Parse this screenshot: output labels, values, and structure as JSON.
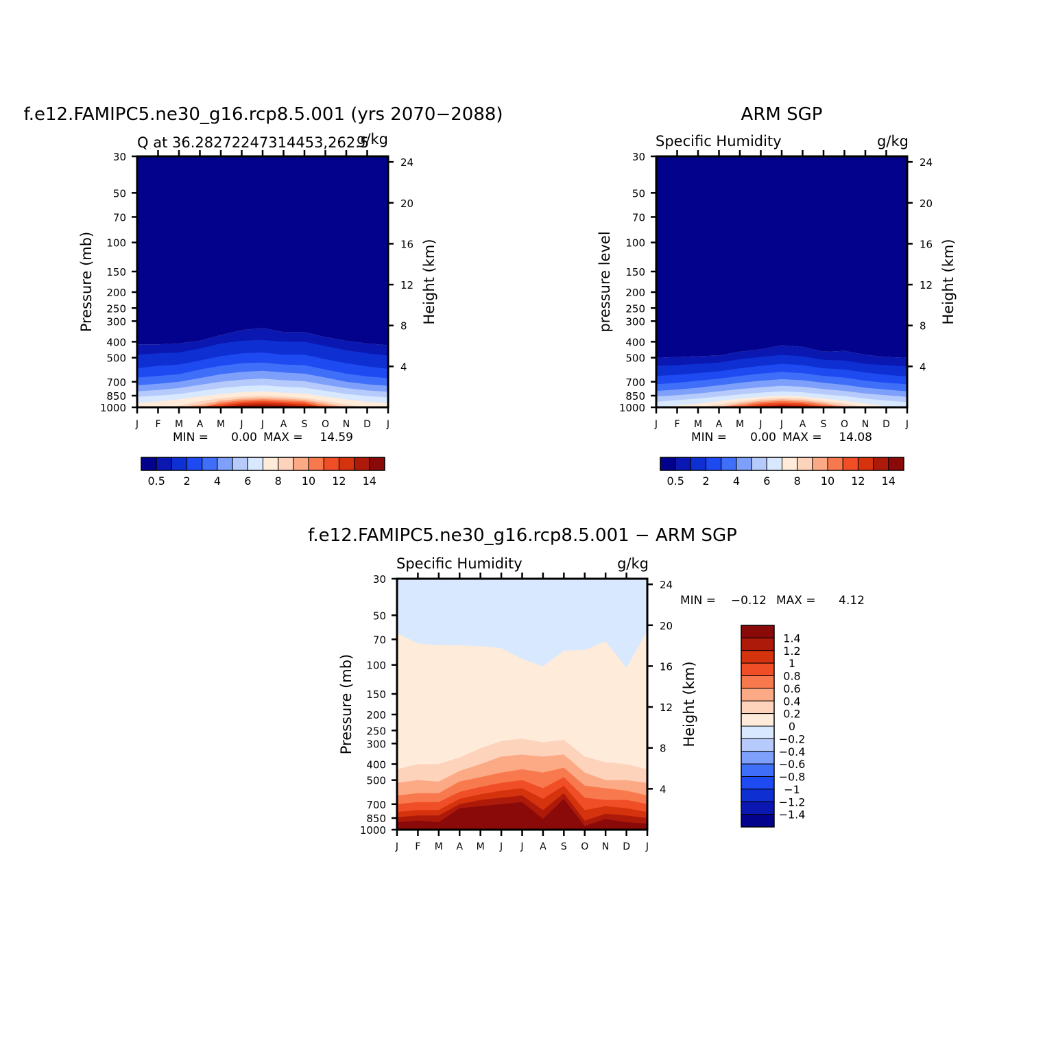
{
  "colors": {
    "q_scale": [
      "#03028c",
      "#0a17b0",
      "#0e2fd2",
      "#1e4af1",
      "#3f6ef9",
      "#7ea0fa",
      "#b6cbfb",
      "#d8e8fe",
      "#feebd9",
      "#fdd3bb",
      "#fcaa85",
      "#f8794e",
      "#f04e26",
      "#d5330d",
      "#ae1a0a",
      "#8a0a09"
    ],
    "diff_scale": [
      "#03028c",
      "#0a17b0",
      "#0e2fd2",
      "#1e4af1",
      "#3f6ef9",
      "#7ea0fa",
      "#b6cbfb",
      "#d8e8fe",
      "#feebd9",
      "#fdd3bb",
      "#fcaa85",
      "#f8794e",
      "#f04e26",
      "#d5330d",
      "#ae1a0a",
      "#8a0a09"
    ]
  },
  "chart_data": [
    {
      "type": "heatmap",
      "title": "f.e12.FAMIPC5.ne30_g16.rcp8.5.001 (yrs 2070−2088)",
      "subtitle_left": "Q at 36.28272247314453,262.5",
      "subtitle_right": "g/kg",
      "ylabel": "Pressure (mb)",
      "ylabel_right": "Height (km)",
      "months": [
        "J",
        "F",
        "M",
        "A",
        "M",
        "J",
        "J",
        "A",
        "S",
        "O",
        "N",
        "D",
        "J"
      ],
      "pressure_ticks": [
        "30",
        "50",
        "70",
        "100",
        "150",
        "200",
        "250",
        "300",
        "400",
        "500",
        "700",
        "850",
        "1000"
      ],
      "height_ticks": [
        "24",
        "20",
        "16",
        "12",
        "8",
        "4"
      ],
      "ylim": [
        30,
        1000
      ],
      "stats": {
        "min_label": "MIN =",
        "min": "0.00",
        "max_label": "MAX =",
        "max": "14.59"
      },
      "colorbar_ticks": [
        "0.5",
        "2",
        "4",
        "6",
        "8",
        "10",
        "12",
        "14"
      ],
      "series": [
        {
          "name": "0.5",
          "values": [
            415,
            415,
            410,
            395,
            365,
            340,
            330,
            350,
            350,
            375,
            395,
            410,
            420
          ]
        },
        {
          "name": "1",
          "values": [
            480,
            470,
            465,
            440,
            410,
            395,
            390,
            400,
            400,
            425,
            450,
            470,
            485
          ]
        },
        {
          "name": "2",
          "values": [
            580,
            560,
            550,
            520,
            490,
            470,
            465,
            480,
            480,
            510,
            540,
            565,
            585
          ]
        },
        {
          "name": "3",
          "values": [
            660,
            645,
            630,
            590,
            560,
            540,
            535,
            550,
            555,
            590,
            625,
            650,
            665
          ]
        },
        {
          "name": "4",
          "values": [
            735,
            720,
            700,
            665,
            630,
            610,
            600,
            615,
            625,
            660,
            700,
            725,
            740
          ]
        },
        {
          "name": "5",
          "values": [
            800,
            785,
            765,
            730,
            700,
            680,
            670,
            685,
            695,
            730,
            765,
            790,
            805
          ]
        },
        {
          "name": "6",
          "values": [
            865,
            850,
            830,
            795,
            765,
            745,
            735,
            750,
            760,
            795,
            830,
            855,
            870
          ]
        },
        {
          "name": "7",
          "values": [
            940,
            920,
            895,
            860,
            830,
            810,
            800,
            815,
            825,
            860,
            895,
            925,
            945
          ]
        },
        {
          "name": "8",
          "values": [
            1000,
            1000,
            980,
            920,
            880,
            860,
            850,
            860,
            875,
            915,
            965,
            1000,
            1000
          ]
        },
        {
          "name": "9",
          "values": [
            1000,
            1000,
            1000,
            965,
            910,
            885,
            875,
            885,
            900,
            945,
            1000,
            1000,
            1000
          ]
        },
        {
          "name": "10",
          "values": [
            1000,
            1000,
            1000,
            1000,
            935,
            905,
            895,
            905,
            920,
            975,
            1000,
            1000,
            1000
          ]
        },
        {
          "name": "11",
          "values": [
            1000,
            1000,
            1000,
            1000,
            960,
            925,
            915,
            925,
            940,
            1000,
            1000,
            1000,
            1000
          ]
        },
        {
          "name": "12",
          "values": [
            1000,
            1000,
            1000,
            1000,
            985,
            945,
            935,
            945,
            960,
            1000,
            1000,
            1000,
            1000
          ]
        },
        {
          "name": "13",
          "values": [
            1000,
            1000,
            1000,
            1000,
            1000,
            970,
            955,
            970,
            985,
            1000,
            1000,
            1000,
            1000
          ]
        },
        {
          "name": "14",
          "values": [
            1000,
            1000,
            1000,
            1000,
            1000,
            995,
            985,
            995,
            1000,
            1000,
            1000,
            1000,
            1000
          ]
        }
      ]
    },
    {
      "type": "heatmap",
      "title": "ARM SGP",
      "subtitle_left": "Specific Humidity",
      "subtitle_right": "g/kg",
      "ylabel": "pressure level",
      "ylabel_right": "Height (km)",
      "months": [
        "J",
        "F",
        "M",
        "A",
        "M",
        "J",
        "J",
        "A",
        "S",
        "O",
        "N",
        "D",
        "J"
      ],
      "pressure_ticks": [
        "30",
        "50",
        "70",
        "100",
        "150",
        "200",
        "250",
        "300",
        "400",
        "500",
        "700",
        "850",
        "1000"
      ],
      "height_ticks": [
        "24",
        "20",
        "16",
        "12",
        "8",
        "4"
      ],
      "ylim": [
        30,
        1000
      ],
      "stats": {
        "min_label": "MIN =",
        "min": "0.00",
        "max_label": "MAX =",
        "max": "14.08"
      },
      "colorbar_ticks": [
        "0.5",
        "2",
        "4",
        "6",
        "8",
        "10",
        "12",
        "14"
      ],
      "series": [
        {
          "name": "0.5",
          "values": [
            500,
            495,
            490,
            485,
            460,
            445,
            420,
            430,
            460,
            455,
            480,
            495,
            500
          ]
        },
        {
          "name": "1",
          "values": [
            560,
            555,
            545,
            535,
            510,
            495,
            480,
            490,
            515,
            520,
            545,
            555,
            565
          ]
        },
        {
          "name": "2",
          "values": [
            645,
            635,
            620,
            605,
            580,
            560,
            545,
            555,
            580,
            590,
            615,
            635,
            650
          ]
        },
        {
          "name": "3",
          "values": [
            725,
            710,
            690,
            670,
            645,
            625,
            610,
            620,
            645,
            660,
            690,
            710,
            725
          ]
        },
        {
          "name": "4",
          "values": [
            795,
            780,
            760,
            735,
            710,
            690,
            675,
            685,
            710,
            730,
            760,
            780,
            800
          ]
        },
        {
          "name": "5",
          "values": [
            860,
            845,
            825,
            800,
            775,
            755,
            740,
            750,
            775,
            795,
            825,
            845,
            865
          ]
        },
        {
          "name": "6",
          "values": [
            925,
            905,
            885,
            860,
            835,
            815,
            800,
            810,
            835,
            855,
            885,
            910,
            930
          ]
        },
        {
          "name": "7",
          "values": [
            1000,
            975,
            950,
            915,
            885,
            865,
            850,
            860,
            885,
            910,
            950,
            985,
            1000
          ]
        },
        {
          "name": "8",
          "values": [
            1000,
            1000,
            1000,
            960,
            920,
            890,
            875,
            885,
            915,
            950,
            1000,
            1000,
            1000
          ]
        },
        {
          "name": "9",
          "values": [
            1000,
            1000,
            1000,
            995,
            945,
            910,
            895,
            905,
            940,
            985,
            1000,
            1000,
            1000
          ]
        },
        {
          "name": "10",
          "values": [
            1000,
            1000,
            1000,
            1000,
            970,
            930,
            915,
            925,
            960,
            1000,
            1000,
            1000,
            1000
          ]
        },
        {
          "name": "11",
          "values": [
            1000,
            1000,
            1000,
            1000,
            995,
            950,
            935,
            945,
            985,
            1000,
            1000,
            1000,
            1000
          ]
        },
        {
          "name": "12",
          "values": [
            1000,
            1000,
            1000,
            1000,
            1000,
            975,
            955,
            965,
            1000,
            1000,
            1000,
            1000,
            1000
          ]
        },
        {
          "name": "13",
          "values": [
            1000,
            1000,
            1000,
            1000,
            1000,
            995,
            975,
            985,
            1000,
            1000,
            1000,
            1000,
            1000
          ]
        },
        {
          "name": "14",
          "values": [
            1000,
            1000,
            1000,
            1000,
            1000,
            1000,
            995,
            1000,
            1000,
            1000,
            1000,
            1000,
            1000
          ]
        }
      ]
    },
    {
      "type": "heatmap",
      "title": "f.e12.FAMIPC5.ne30_g16.rcp8.5.001 − ARM SGP",
      "subtitle_left": "Specific Humidity",
      "subtitle_right": "g/kg",
      "ylabel": "Pressure (mb)",
      "ylabel_right": "Height (km)",
      "months": [
        "J",
        "F",
        "M",
        "A",
        "M",
        "J",
        "J",
        "A",
        "S",
        "O",
        "N",
        "D",
        "J"
      ],
      "pressure_ticks": [
        "30",
        "50",
        "70",
        "100",
        "150",
        "200",
        "250",
        "300",
        "400",
        "500",
        "700",
        "850",
        "1000"
      ],
      "height_ticks": [
        "24",
        "20",
        "16",
        "12",
        "8",
        "4"
      ],
      "ylim": [
        30,
        1000
      ],
      "stats": {
        "min_label": "MIN =",
        "min": "−0.12",
        "max_label": "MAX =",
        "max": "4.12"
      },
      "colorbar_ticks": [
        "1.4",
        "1.2",
        "1",
        "0.8",
        "0.6",
        "0.4",
        "0.2",
        "0",
        "−0.2",
        "−0.4",
        "−0.6",
        "−0.8",
        "−1",
        "−1.2",
        "−1.4"
      ],
      "series": [
        {
          "name": "0",
          "values": [
            64,
            74,
            76,
            76,
            77,
            79,
            92,
            102,
            82,
            81,
            72,
            104,
            62
          ]
        },
        {
          "name": "0.2",
          "values": [
            430,
            400,
            400,
            365,
            320,
            290,
            280,
            295,
            285,
            360,
            390,
            400,
            430
          ]
        },
        {
          "name": "0.4",
          "values": [
            520,
            500,
            510,
            440,
            400,
            360,
            350,
            360,
            350,
            450,
            500,
            500,
            520
          ]
        },
        {
          "name": "0.6",
          "values": [
            620,
            600,
            600,
            510,
            480,
            450,
            430,
            450,
            420,
            540,
            560,
            580,
            620
          ]
        },
        {
          "name": "0.8",
          "values": [
            700,
            680,
            680,
            590,
            550,
            520,
            500,
            560,
            480,
            640,
            660,
            660,
            700
          ]
        },
        {
          "name": "1",
          "values": [
            780,
            760,
            760,
            650,
            610,
            580,
            560,
            650,
            540,
            760,
            720,
            740,
            780
          ]
        },
        {
          "name": "1.2",
          "values": [
            840,
            820,
            820,
            700,
            660,
            640,
            620,
            760,
            600,
            880,
            800,
            820,
            850
          ]
        },
        {
          "name": "1.4",
          "values": [
            900,
            880,
            900,
            740,
            720,
            700,
            680,
            860,
            650,
            950,
            860,
            900,
            920
          ]
        }
      ]
    }
  ]
}
